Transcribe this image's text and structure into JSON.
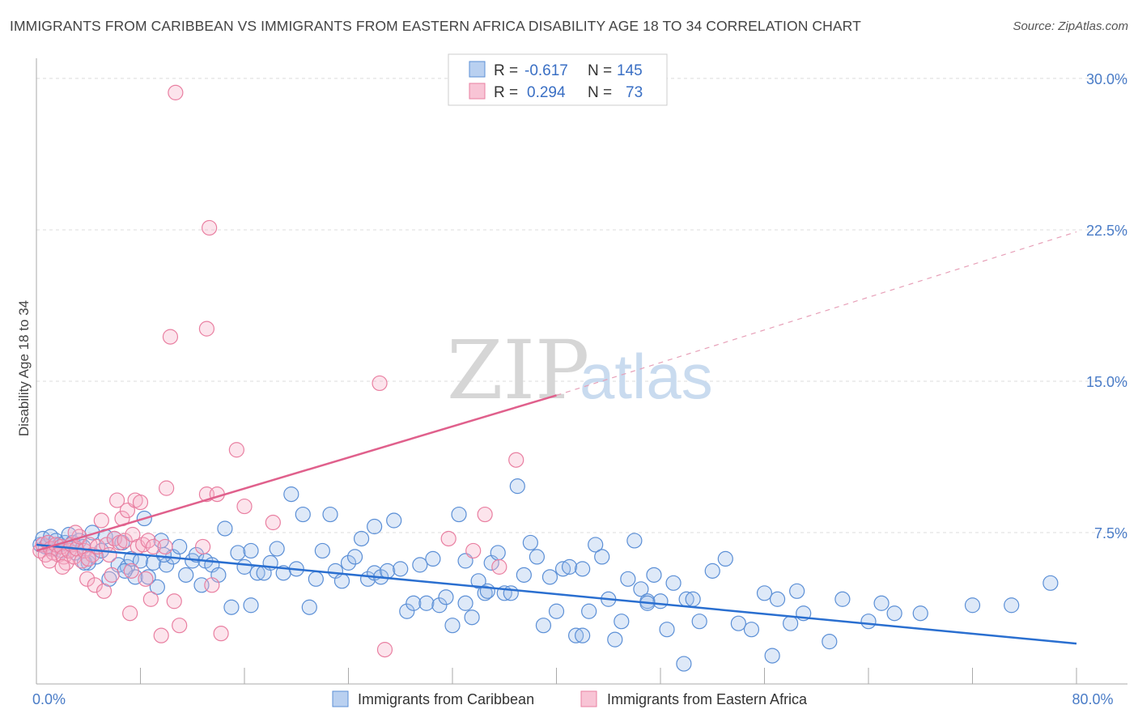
{
  "title": "IMMIGRANTS FROM CARIBBEAN VS IMMIGRANTS FROM EASTERN AFRICA DISABILITY AGE 18 TO 34 CORRELATION CHART",
  "source": "Source: ZipAtlas.com",
  "watermark": {
    "zip": "ZIP",
    "atlas": "atlas"
  },
  "legend": {
    "rows": [
      {
        "r_label": "R =",
        "r_value": "-0.617",
        "n_label": "N =",
        "n_value": "145",
        "color": "#5b8fd6"
      },
      {
        "r_label": "R =",
        "r_value": "0.294",
        "n_label": "N =",
        "n_value": "73",
        "color": "#e97fa1"
      }
    ]
  },
  "chart_data": {
    "type": "scatter",
    "title": "IMMIGRANTS FROM CARIBBEAN VS IMMIGRANTS FROM EASTERN AFRICA DISABILITY AGE 18 TO 34 CORRELATION CHART",
    "xlabel": "",
    "ylabel": "Disability Age 18 to 34",
    "xlim": [
      0,
      80
    ],
    "ylim": [
      0,
      31
    ],
    "y_ticks": [
      {
        "value": 7.5,
        "label": "7.5%"
      },
      {
        "value": 15,
        "label": "15.0%"
      },
      {
        "value": 22.5,
        "label": "22.5%"
      },
      {
        "value": 30,
        "label": "30.0%"
      }
    ],
    "x_tick_labels": [
      {
        "value": 0,
        "label": "0.0%"
      },
      {
        "value": 80,
        "label": "80.0%"
      }
    ],
    "grid": true,
    "legend_position": "top-center",
    "series": [
      {
        "name": "Immigrants from Caribbean",
        "color": "#5b8fd6",
        "trend": {
          "x": [
            0,
            80
          ],
          "y": [
            6.9,
            2.0
          ],
          "dashed_extension": false
        },
        "points": [
          [
            0.3,
            6.9
          ],
          [
            0.5,
            7.2
          ],
          [
            0.7,
            6.8
          ],
          [
            0.9,
            7.0
          ],
          [
            1.1,
            7.3
          ],
          [
            1.3,
            6.7
          ],
          [
            1.5,
            7.1
          ],
          [
            1.8,
            6.9
          ],
          [
            2.0,
            6.6
          ],
          [
            2.2,
            7.0
          ],
          [
            2.5,
            7.4
          ],
          [
            2.8,
            7.0
          ],
          [
            3.0,
            6.5
          ],
          [
            3.3,
            7.1
          ],
          [
            3.6,
            6.8
          ],
          [
            4.0,
            6.0
          ],
          [
            4.3,
            7.5
          ],
          [
            4.6,
            6.3
          ],
          [
            5.0,
            6.6
          ],
          [
            5.3,
            7.3
          ],
          [
            5.6,
            5.2
          ],
          [
            6.0,
            7.2
          ],
          [
            6.3,
            5.9
          ],
          [
            6.6,
            7.0
          ],
          [
            7.0,
            5.8
          ],
          [
            7.3,
            6.2
          ],
          [
            7.6,
            5.3
          ],
          [
            8.0,
            6.1
          ],
          [
            8.3,
            8.2
          ],
          [
            8.6,
            5.3
          ],
          [
            9.0,
            6.0
          ],
          [
            9.3,
            4.8
          ],
          [
            9.6,
            7.1
          ],
          [
            10.0,
            5.9
          ],
          [
            10.5,
            6.3
          ],
          [
            11.0,
            6.8
          ],
          [
            11.5,
            5.4
          ],
          [
            12.0,
            6.1
          ],
          [
            12.3,
            6.4
          ],
          [
            12.7,
            4.9
          ],
          [
            13.0,
            6.1
          ],
          [
            13.5,
            5.9
          ],
          [
            14.0,
            5.4
          ],
          [
            14.5,
            7.7
          ],
          [
            15.0,
            3.8
          ],
          [
            15.5,
            6.5
          ],
          [
            16.0,
            5.8
          ],
          [
            16.5,
            6.6
          ],
          [
            17.0,
            5.5
          ],
          [
            17.5,
            5.5
          ],
          [
            18.0,
            6.0
          ],
          [
            18.5,
            6.7
          ],
          [
            19.0,
            5.5
          ],
          [
            19.6,
            9.4
          ],
          [
            20.0,
            5.7
          ],
          [
            20.5,
            8.4
          ],
          [
            21.0,
            3.8
          ],
          [
            21.5,
            5.2
          ],
          [
            22.0,
            6.6
          ],
          [
            22.6,
            8.4
          ],
          [
            23.0,
            5.6
          ],
          [
            23.5,
            5.1
          ],
          [
            24.0,
            6.0
          ],
          [
            24.5,
            6.3
          ],
          [
            25.0,
            7.2
          ],
          [
            25.5,
            5.2
          ],
          [
            26.0,
            5.5
          ],
          [
            26.5,
            5.3
          ],
          [
            27.0,
            5.6
          ],
          [
            27.5,
            8.1
          ],
          [
            28.0,
            5.7
          ],
          [
            28.5,
            3.6
          ],
          [
            29.0,
            4.0
          ],
          [
            29.5,
            5.9
          ],
          [
            30.0,
            4.0
          ],
          [
            30.5,
            6.2
          ],
          [
            31.0,
            3.9
          ],
          [
            31.5,
            4.3
          ],
          [
            32.0,
            2.9
          ],
          [
            32.5,
            8.4
          ],
          [
            33.0,
            6.1
          ],
          [
            33.5,
            3.3
          ],
          [
            34.0,
            5.1
          ],
          [
            34.5,
            4.5
          ],
          [
            35.0,
            6.0
          ],
          [
            35.5,
            6.5
          ],
          [
            36.0,
            4.5
          ],
          [
            36.5,
            4.5
          ],
          [
            37.0,
            9.8
          ],
          [
            37.5,
            5.4
          ],
          [
            38.0,
            7.0
          ],
          [
            38.5,
            6.3
          ],
          [
            39.0,
            2.9
          ],
          [
            39.5,
            5.3
          ],
          [
            40.0,
            3.6
          ],
          [
            40.5,
            5.7
          ],
          [
            41.0,
            5.8
          ],
          [
            41.5,
            2.4
          ],
          [
            42.0,
            2.4
          ],
          [
            42.5,
            3.6
          ],
          [
            43.0,
            6.9
          ],
          [
            43.5,
            6.3
          ],
          [
            44.0,
            4.2
          ],
          [
            44.5,
            2.2
          ],
          [
            45.0,
            3.1
          ],
          [
            45.5,
            5.2
          ],
          [
            46.0,
            7.1
          ],
          [
            46.5,
            4.7
          ],
          [
            47.0,
            4.1
          ],
          [
            47.5,
            5.4
          ],
          [
            48.0,
            4.1
          ],
          [
            48.5,
            2.7
          ],
          [
            49.0,
            5.0
          ],
          [
            49.8,
            1.0
          ],
          [
            50.0,
            4.2
          ],
          [
            50.5,
            4.2
          ],
          [
            51.0,
            3.1
          ],
          [
            52.0,
            5.6
          ],
          [
            53.0,
            6.2
          ],
          [
            54.0,
            3.0
          ],
          [
            55.0,
            2.7
          ],
          [
            56.0,
            4.5
          ],
          [
            57.0,
            4.2
          ],
          [
            58.0,
            3.0
          ],
          [
            58.5,
            4.6
          ],
          [
            59.0,
            3.5
          ],
          [
            61.0,
            2.1
          ],
          [
            62.0,
            4.2
          ],
          [
            64.0,
            3.1
          ],
          [
            65.0,
            4.0
          ],
          [
            66.0,
            3.5
          ],
          [
            68.0,
            3.5
          ],
          [
            72.0,
            3.9
          ],
          [
            75.0,
            3.9
          ],
          [
            78.0,
            5.0
          ],
          [
            56.6,
            1.4
          ],
          [
            47.0,
            4.0
          ],
          [
            34.7,
            4.6
          ],
          [
            42.0,
            5.7
          ],
          [
            26.0,
            7.8
          ],
          [
            9.8,
            6.4
          ],
          [
            6.8,
            5.6
          ],
          [
            3.7,
            6.0
          ],
          [
            16.5,
            3.9
          ],
          [
            33.0,
            4.0
          ]
        ]
      },
      {
        "name": "Immigrants from Eastern Africa",
        "color": "#e97fa1",
        "trend": {
          "x": [
            0,
            40
          ],
          "y": [
            6.6,
            14.3
          ],
          "dashed_extension": {
            "x": [
              40,
              80
            ],
            "y": [
              14.3,
              22.4
            ]
          }
        },
        "points": [
          [
            0.3,
            6.6
          ],
          [
            0.5,
            6.9
          ],
          [
            0.7,
            6.4
          ],
          [
            0.9,
            7.0
          ],
          [
            1.1,
            6.7
          ],
          [
            1.3,
            6.5
          ],
          [
            1.5,
            6.9
          ],
          [
            1.7,
            6.4
          ],
          [
            1.9,
            6.8
          ],
          [
            2.1,
            6.3
          ],
          [
            2.3,
            6.0
          ],
          [
            2.5,
            6.6
          ],
          [
            2.7,
            6.9
          ],
          [
            2.9,
            6.3
          ],
          [
            3.1,
            6.7
          ],
          [
            3.3,
            7.3
          ],
          [
            3.5,
            6.1
          ],
          [
            3.7,
            6.6
          ],
          [
            3.9,
            5.2
          ],
          [
            4.1,
            6.9
          ],
          [
            4.3,
            6.4
          ],
          [
            4.5,
            4.9
          ],
          [
            4.7,
            6.8
          ],
          [
            5.0,
            8.1
          ],
          [
            5.2,
            4.6
          ],
          [
            5.4,
            6.9
          ],
          [
            5.6,
            6.4
          ],
          [
            5.8,
            5.4
          ],
          [
            6.0,
            7.2
          ],
          [
            6.2,
            9.1
          ],
          [
            6.4,
            7.0
          ],
          [
            6.6,
            8.2
          ],
          [
            6.8,
            7.1
          ],
          [
            7.0,
            8.6
          ],
          [
            7.2,
            3.5
          ],
          [
            7.4,
            7.4
          ],
          [
            7.6,
            9.1
          ],
          [
            7.8,
            6.8
          ],
          [
            8.0,
            9.0
          ],
          [
            8.2,
            6.9
          ],
          [
            8.4,
            5.2
          ],
          [
            8.6,
            7.1
          ],
          [
            8.8,
            4.2
          ],
          [
            9.0,
            6.8
          ],
          [
            9.6,
            2.4
          ],
          [
            10.0,
            9.7
          ],
          [
            10.3,
            17.2
          ],
          [
            10.6,
            4.1
          ],
          [
            11.0,
            2.9
          ],
          [
            13.1,
            9.4
          ],
          [
            13.3,
            22.6
          ],
          [
            13.5,
            4.9
          ],
          [
            13.9,
            9.4
          ],
          [
            14.2,
            2.5
          ],
          [
            15.4,
            11.6
          ],
          [
            16.0,
            8.8
          ],
          [
            18.2,
            8.0
          ],
          [
            26.4,
            14.9
          ],
          [
            26.8,
            1.7
          ],
          [
            31.7,
            7.2
          ],
          [
            33.6,
            6.6
          ],
          [
            34.5,
            8.4
          ],
          [
            35.6,
            5.8
          ],
          [
            36.9,
            11.1
          ],
          [
            10.7,
            29.3
          ],
          [
            13.1,
            17.6
          ],
          [
            1.0,
            6.1
          ],
          [
            2.0,
            5.8
          ],
          [
            3.0,
            7.5
          ],
          [
            4.0,
            6.2
          ],
          [
            12.8,
            6.8
          ],
          [
            7.3,
            5.6
          ],
          [
            9.9,
            6.8
          ]
        ]
      }
    ]
  }
}
